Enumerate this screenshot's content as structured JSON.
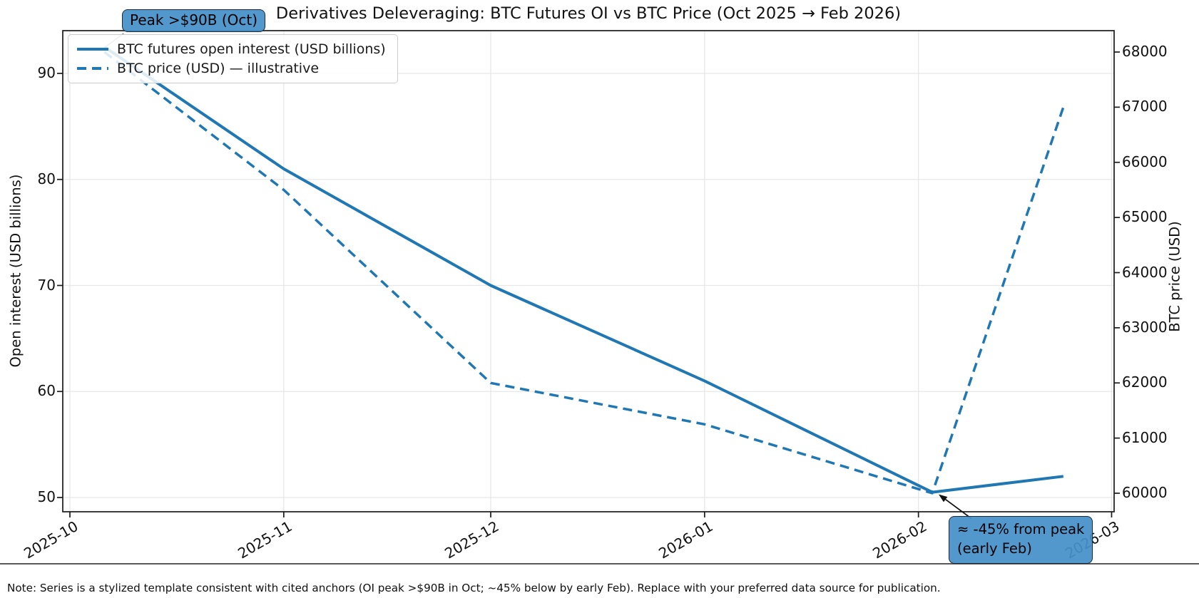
{
  "title": "Derivatives Deleveraging: BTC Futures OI vs BTC Price (Oct 2025 → Feb 2026)",
  "note": "Note: Series is a stylized template consistent with cited anchors (OI peak >$90B in Oct; ~45% below by early Feb). Replace with your preferred data source for publication.",
  "colors": {
    "line": "#1f77b4",
    "annotation_fill": "#4590c8",
    "annotation_border": "#1d2936",
    "grid": "#e7e7e7",
    "spine": "#1a1a1a"
  },
  "chart_data": {
    "type": "line",
    "grid": true,
    "legend_position": "upper left",
    "x_axis": {
      "tick_dates": [
        "2025-10-01",
        "2025-11-01",
        "2025-12-01",
        "2026-01-01",
        "2026-02-01",
        "2026-03-01"
      ],
      "tick_labels": [
        "2025-10",
        "2025-11",
        "2025-12",
        "2026-01",
        "2026-02",
        "2026-03"
      ],
      "range": [
        "2025-09-30",
        "2026-03-01"
      ]
    },
    "left_axis": {
      "label": "Open interest (USD billions)",
      "ticks": [
        50,
        60,
        70,
        80,
        90
      ],
      "lim": [
        48.5,
        94
      ]
    },
    "right_axis": {
      "label": "BTC price (USD)",
      "ticks": [
        60000,
        61000,
        62000,
        63000,
        64000,
        65000,
        66000,
        67000,
        68000
      ],
      "lim": [
        59640,
        68390
      ]
    },
    "series": [
      {
        "name": "BTC futures open interest (USD billions)",
        "axis": "left",
        "style": "solid",
        "points": [
          [
            "2025-10-06",
            92.5
          ],
          [
            "2025-11-01",
            81
          ],
          [
            "2025-12-01",
            70
          ],
          [
            "2026-01-01",
            61
          ],
          [
            "2026-02-03",
            50.5
          ],
          [
            "2026-02-22",
            52
          ]
        ]
      },
      {
        "name": "BTC price (USD) — illustrative",
        "axis": "right",
        "style": "dashed",
        "points": [
          [
            "2025-10-06",
            68000
          ],
          [
            "2025-11-01",
            65500
          ],
          [
            "2025-12-01",
            62000
          ],
          [
            "2026-01-01",
            61250
          ],
          [
            "2026-02-03",
            60000
          ],
          [
            "2026-02-22",
            67000
          ]
        ]
      }
    ],
    "annotations": [
      {
        "id": "peak",
        "text": "Peak >$90B (Oct)",
        "target": {
          "date": "2025-10-06",
          "value": 92.5,
          "axis": "left"
        }
      },
      {
        "id": "drop",
        "text": "≈ -45% from peak\n(early Feb)",
        "target": {
          "date": "2026-02-03",
          "value": 50.5,
          "axis": "left"
        }
      }
    ]
  }
}
